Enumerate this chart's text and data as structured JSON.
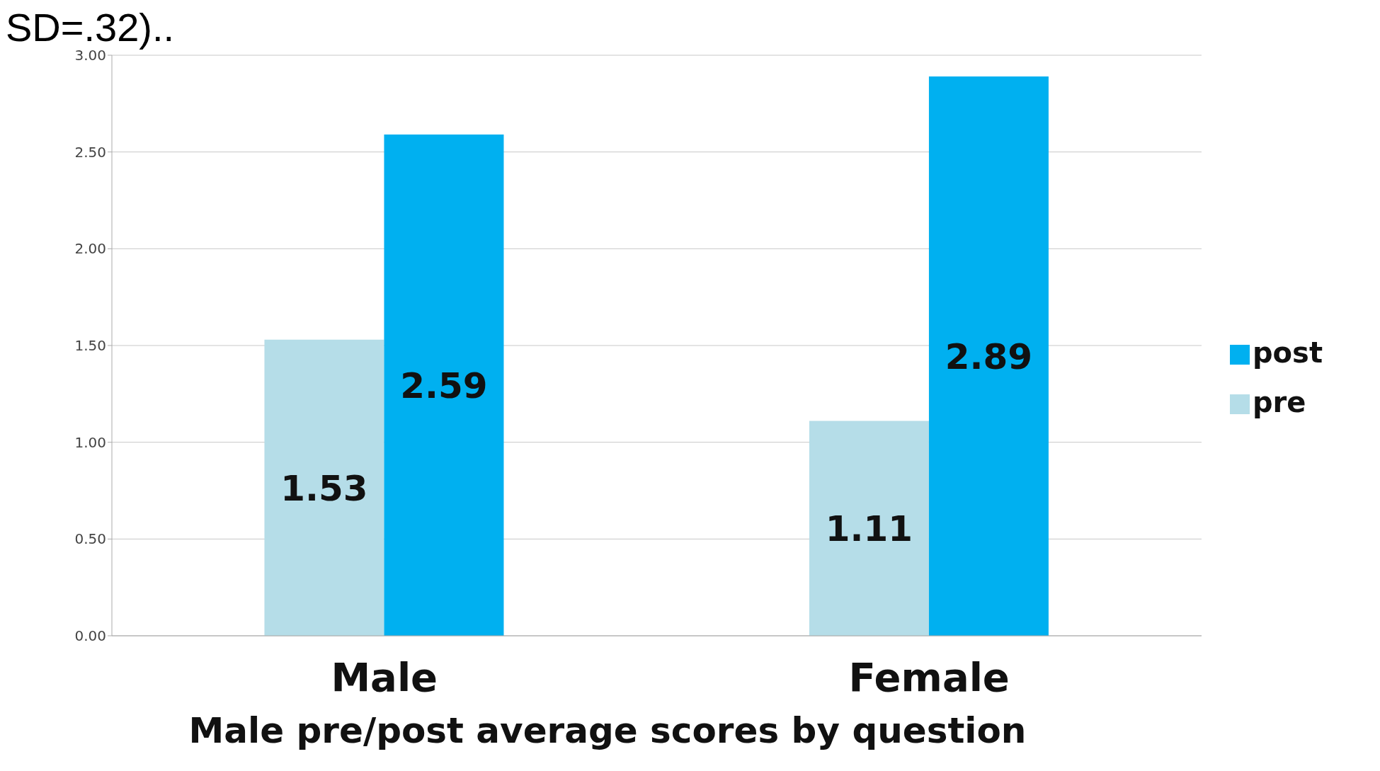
{
  "chart_data": {
    "type": "bar",
    "title": "Male pre/post average scores by question",
    "annotations": [
      "SD=.32).."
    ],
    "categories": [
      "Male",
      "Female"
    ],
    "series": [
      {
        "name": "pre",
        "color": "#b5dde8",
        "values": [
          1.53,
          1.11
        ]
      },
      {
        "name": "post",
        "color": "#00b0f0",
        "values": [
          2.59,
          2.89
        ]
      }
    ],
    "ylim": [
      0,
      3
    ],
    "yticks": [
      {
        "value": 0,
        "label": "0.00"
      },
      {
        "value": 0.5,
        "label": "0.50"
      },
      {
        "value": 1,
        "label": "1.00"
      },
      {
        "value": 1.5,
        "label": "1.50"
      },
      {
        "value": 2,
        "label": "2.00"
      },
      {
        "value": 2.5,
        "label": "2.50"
      },
      {
        "value": 3,
        "label": "3.00"
      }
    ],
    "grid": "y",
    "legend": "right",
    "data_labels": true
  }
}
